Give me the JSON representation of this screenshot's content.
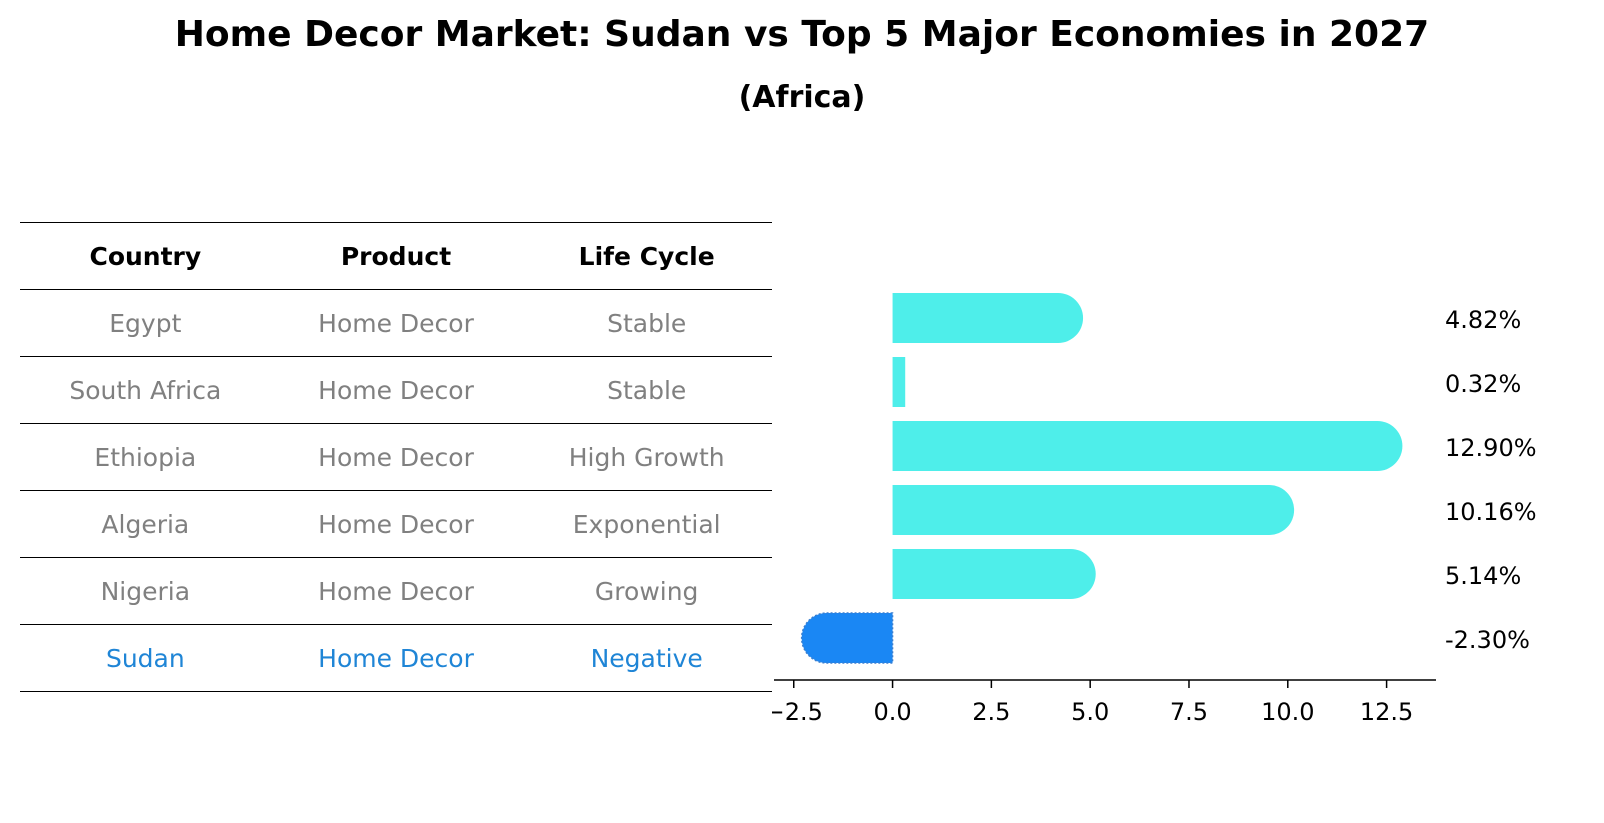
{
  "header": {
    "title": "Home Decor Market: Sudan vs Top 5 Major Economies in 2027",
    "subtitle": "(Africa)"
  },
  "table": {
    "columns": [
      "Country",
      "Product",
      "Life Cycle"
    ],
    "rows": [
      [
        "Egypt",
        "Home Decor",
        "Stable"
      ],
      [
        "South Africa",
        "Home Decor",
        "Stable"
      ],
      [
        "Ethiopia",
        "Home Decor",
        "High Growth"
      ],
      [
        "Algeria",
        "Home Decor",
        "Exponential"
      ],
      [
        "Nigeria",
        "Home Decor",
        "Growing"
      ],
      [
        "Sudan",
        "Home Decor",
        "Negative"
      ]
    ],
    "highlight_row": 5
  },
  "chart_data": {
    "type": "bar",
    "orientation": "horizontal",
    "categories": [
      "Egypt",
      "South Africa",
      "Ethiopia",
      "Algeria",
      "Nigeria",
      "Sudan"
    ],
    "values": [
      4.82,
      0.32,
      12.9,
      10.16,
      5.14,
      -2.3
    ],
    "data_labels": [
      "4.82%",
      "0.32%",
      "12.90%",
      "10.16%",
      "5.14%",
      "-2.30%"
    ],
    "xlim": [
      -3.0,
      13.75
    ],
    "xticks": [
      -2.5,
      0.0,
      2.5,
      5.0,
      7.5,
      10.0,
      12.5
    ],
    "xtick_labels": [
      "−2.5",
      "0.0",
      "2.5",
      "5.0",
      "7.5",
      "10.0",
      "12.5"
    ],
    "colors": {
      "positive": "#4eeeea",
      "highlight": "#1a87f4"
    },
    "highlight_index": 5
  }
}
